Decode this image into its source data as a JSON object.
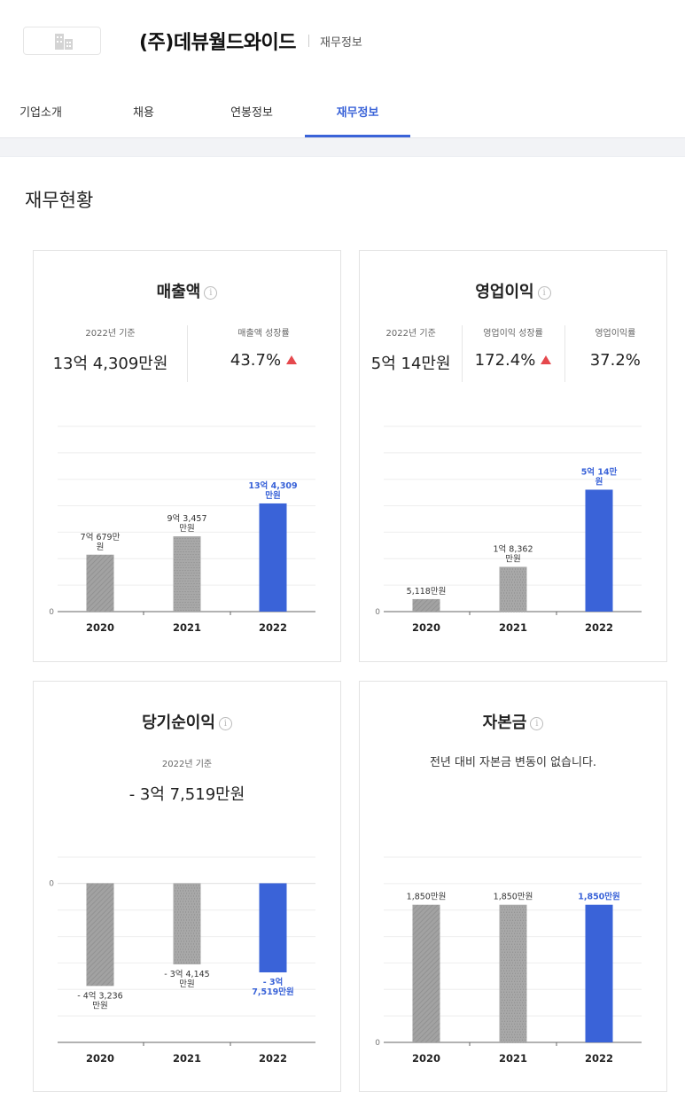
{
  "header": {
    "company_name": "(주)데뷰월드와이드",
    "subtitle": "재무정보",
    "logo_icon": "building-icon"
  },
  "tabs": [
    {
      "label": "기업소개",
      "active": false
    },
    {
      "label": "채용",
      "active": false
    },
    {
      "label": "연봉정보",
      "active": false
    },
    {
      "label": "재무정보",
      "active": true
    }
  ],
  "section_title": "재무현황",
  "colors": {
    "accent": "#3a63d8",
    "bar_gray": "#9a9a9a",
    "up": "#e5484d"
  },
  "cards": {
    "revenue": {
      "title": "매출액",
      "stats": [
        {
          "label": "2022년 기준",
          "value": "13억 4,309만원"
        },
        {
          "label": "매출액 성장률",
          "value": "43.7%",
          "trend": "up"
        }
      ]
    },
    "operating_income": {
      "title": "영업이익",
      "stats": [
        {
          "label": "2022년 기준",
          "value": "5억 14만원"
        },
        {
          "label": "영업이익 성장률",
          "value": "172.4%",
          "trend": "up"
        },
        {
          "label": "영업이익률",
          "value": "37.2%"
        }
      ]
    },
    "net_income": {
      "title": "당기순이익",
      "stats": [
        {
          "label": "2022년 기준",
          "value": "- 3억 7,519만원"
        }
      ]
    },
    "capital": {
      "title": "자본금",
      "notice": "전년 대비 자본금 변동이 없습니다."
    }
  },
  "chart_data": [
    {
      "type": "bar",
      "title": "매출액",
      "categories": [
        "2020",
        "2021",
        "2022"
      ],
      "values": [
        70679,
        93457,
        134309
      ],
      "value_labels": [
        [
          "7억 679만",
          "원"
        ],
        [
          "9억 3,457",
          "만원"
        ],
        [
          "13억 4,309",
          "만원"
        ]
      ],
      "ylim": [
        0,
        230000
      ],
      "yticks": [
        "0"
      ],
      "highlight_last": true,
      "grid": true
    },
    {
      "type": "bar",
      "title": "영업이익",
      "categories": [
        "2020",
        "2021",
        "2022"
      ],
      "values": [
        5118,
        18362,
        50014
      ],
      "value_labels": [
        [
          "5,118만원"
        ],
        [
          "1억 8,362",
          "만원"
        ],
        [
          "5억 14만",
          "원"
        ]
      ],
      "ylim": [
        0,
        76000
      ],
      "yticks": [
        "0"
      ],
      "highlight_last": true,
      "grid": true
    },
    {
      "type": "bar",
      "title": "당기순이익",
      "categories": [
        "2020",
        "2021",
        "2022"
      ],
      "values": [
        -43236,
        -34145,
        -37519
      ],
      "value_labels": [
        [
          "- 4억 3,236",
          "만원"
        ],
        [
          "- 3억 4,145",
          "만원"
        ],
        [
          "- 3억",
          "7,519만원"
        ]
      ],
      "ylim": [
        -67000,
        11000
      ],
      "yticks": [
        "0"
      ],
      "highlight_last": true,
      "grid": true
    },
    {
      "type": "bar",
      "title": "자본금",
      "categories": [
        "2020",
        "2021",
        "2022"
      ],
      "values": [
        1850,
        1850,
        1850
      ],
      "value_labels": [
        [
          "1,850만원"
        ],
        [
          "1,850만원"
        ],
        [
          "1,850만원"
        ]
      ],
      "ylim": [
        0,
        2490
      ],
      "yticks": [
        "0"
      ],
      "highlight_last": true,
      "grid": true
    }
  ]
}
